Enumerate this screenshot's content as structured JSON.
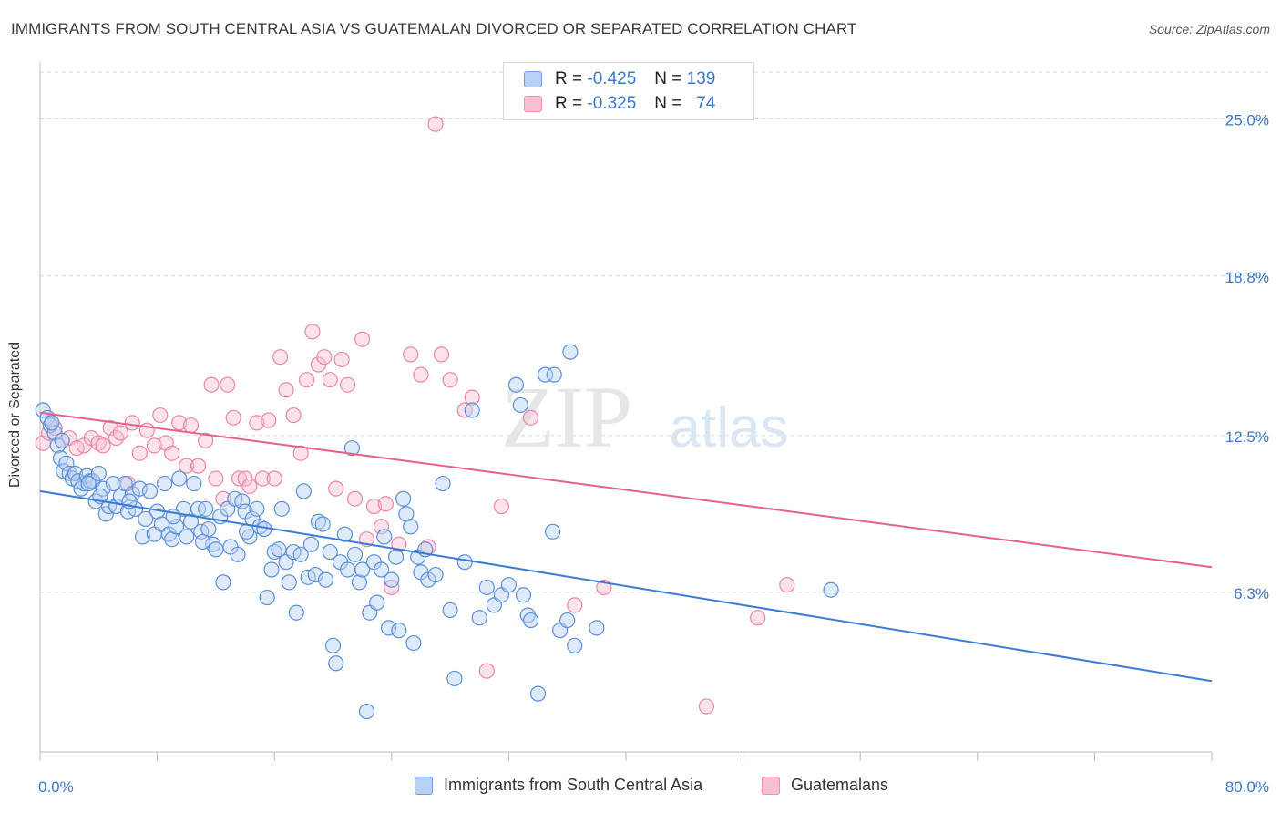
{
  "title": "IMMIGRANTS FROM SOUTH CENTRAL ASIA VS GUATEMALAN DIVORCED OR SEPARATED CORRELATION CHART",
  "source": "Source: ZipAtlas.com",
  "watermark": {
    "zip": "ZIP",
    "atlas": "atlas"
  },
  "legend_top": {
    "rows": [
      {
        "r_label": "R =",
        "r_value": "-0.425",
        "n_label": "N =",
        "n_value": "139"
      },
      {
        "r_label": "R =",
        "r_value": "-0.325",
        "n_label": "N =",
        "n_value": "74"
      }
    ]
  },
  "colors": {
    "blue": "#3a7bd5",
    "blue_fill": "#b8d0f2",
    "pink": "#e8608c",
    "pink_fill": "#f7bfd2",
    "tick_label": "#3b78c9",
    "grid": "#d8d8d8"
  },
  "chart_data": {
    "type": "scatter",
    "title": "IMMIGRANTS FROM SOUTH CENTRAL ASIA VS GUATEMALAN DIVORCED OR SEPARATED CORRELATION CHART",
    "xlabel": "",
    "ylabel": "Divorced or Separated",
    "xlim": [
      0,
      80
    ],
    "ylim": [
      0,
      27
    ],
    "x_tick_labels": [
      "0.0%",
      "80.0%"
    ],
    "y_ticks": [
      6.3,
      12.5,
      18.8,
      25.0
    ],
    "y_tick_labels": [
      "6.3%",
      "12.5%",
      "18.8%",
      "25.0%"
    ],
    "grid": true,
    "legend_position": "bottom",
    "series": [
      {
        "name": "Immigrants from South Central Asia",
        "color": "#3a7bd5",
        "trend": {
          "x": [
            0,
            80
          ],
          "y": [
            10.3,
            2.8
          ]
        },
        "points": [
          [
            0.2,
            13.5
          ],
          [
            0.5,
            13.2
          ],
          [
            0.7,
            12.9
          ],
          [
            1.0,
            12.6
          ],
          [
            1.2,
            12.1
          ],
          [
            1.4,
            11.6
          ],
          [
            1.6,
            11.1
          ],
          [
            1.8,
            11.4
          ],
          [
            2.0,
            11.0
          ],
          [
            2.2,
            10.8
          ],
          [
            2.4,
            11.0
          ],
          [
            2.6,
            10.7
          ],
          [
            2.8,
            10.4
          ],
          [
            3.0,
            10.6
          ],
          [
            3.2,
            10.9
          ],
          [
            3.4,
            10.7
          ],
          [
            3.6,
            10.7
          ],
          [
            3.8,
            9.9
          ],
          [
            4.0,
            11.0
          ],
          [
            4.3,
            10.4
          ],
          [
            4.5,
            9.4
          ],
          [
            4.7,
            9.7
          ],
          [
            5.0,
            10.6
          ],
          [
            5.2,
            9.7
          ],
          [
            5.5,
            10.1
          ],
          [
            5.8,
            10.6
          ],
          [
            6.0,
            9.5
          ],
          [
            6.3,
            10.2
          ],
          [
            6.5,
            9.6
          ],
          [
            6.8,
            10.4
          ],
          [
            7.0,
            8.5
          ],
          [
            7.2,
            9.2
          ],
          [
            7.5,
            10.3
          ],
          [
            7.8,
            8.6
          ],
          [
            8.0,
            9.5
          ],
          [
            8.3,
            9.0
          ],
          [
            8.5,
            10.6
          ],
          [
            8.8,
            8.6
          ],
          [
            9.0,
            8.4
          ],
          [
            9.3,
            8.9
          ],
          [
            9.5,
            10.8
          ],
          [
            9.8,
            9.6
          ],
          [
            10.0,
            8.5
          ],
          [
            10.3,
            9.1
          ],
          [
            10.5,
            10.6
          ],
          [
            10.8,
            9.6
          ],
          [
            11.0,
            8.7
          ],
          [
            11.3,
            9.6
          ],
          [
            11.5,
            8.8
          ],
          [
            11.8,
            8.2
          ],
          [
            12.0,
            8.0
          ],
          [
            12.3,
            9.3
          ],
          [
            12.5,
            6.7
          ],
          [
            12.8,
            9.6
          ],
          [
            13.0,
            8.1
          ],
          [
            13.3,
            10.0
          ],
          [
            13.5,
            7.8
          ],
          [
            13.8,
            9.9
          ],
          [
            14.0,
            9.5
          ],
          [
            14.3,
            8.5
          ],
          [
            14.5,
            9.2
          ],
          [
            14.8,
            9.6
          ],
          [
            15.0,
            8.9
          ],
          [
            15.3,
            8.8
          ],
          [
            15.5,
            6.1
          ],
          [
            15.8,
            7.2
          ],
          [
            16.0,
            7.9
          ],
          [
            16.3,
            8.0
          ],
          [
            16.5,
            9.6
          ],
          [
            16.8,
            7.5
          ],
          [
            17.0,
            6.7
          ],
          [
            17.3,
            7.9
          ],
          [
            17.5,
            5.5
          ],
          [
            17.8,
            7.8
          ],
          [
            18.0,
            10.3
          ],
          [
            18.3,
            6.9
          ],
          [
            18.5,
            8.2
          ],
          [
            18.8,
            7.0
          ],
          [
            19.0,
            9.1
          ],
          [
            19.3,
            9.0
          ],
          [
            19.5,
            6.8
          ],
          [
            19.8,
            7.9
          ],
          [
            20.0,
            4.2
          ],
          [
            20.2,
            3.5
          ],
          [
            20.5,
            7.5
          ],
          [
            20.8,
            8.6
          ],
          [
            21.0,
            7.2
          ],
          [
            21.3,
            12.0
          ],
          [
            21.5,
            7.8
          ],
          [
            21.8,
            6.7
          ],
          [
            22.0,
            7.2
          ],
          [
            22.3,
            1.6
          ],
          [
            22.5,
            5.5
          ],
          [
            22.8,
            7.5
          ],
          [
            23.0,
            5.9
          ],
          [
            23.3,
            7.2
          ],
          [
            23.5,
            8.5
          ],
          [
            23.8,
            4.9
          ],
          [
            24.0,
            6.8
          ],
          [
            24.3,
            7.7
          ],
          [
            24.5,
            4.8
          ],
          [
            24.8,
            10.0
          ],
          [
            25.0,
            9.4
          ],
          [
            25.3,
            8.9
          ],
          [
            25.5,
            4.3
          ],
          [
            25.8,
            7.7
          ],
          [
            26.0,
            7.1
          ],
          [
            26.3,
            8.0
          ],
          [
            26.5,
            6.8
          ],
          [
            27.0,
            7.0
          ],
          [
            27.5,
            10.6
          ],
          [
            28.0,
            5.6
          ],
          [
            28.3,
            2.9
          ],
          [
            29.0,
            7.5
          ],
          [
            29.5,
            13.5
          ],
          [
            30.0,
            5.3
          ],
          [
            30.5,
            6.5
          ],
          [
            31.0,
            5.8
          ],
          [
            31.5,
            6.2
          ],
          [
            32.0,
            6.6
          ],
          [
            32.5,
            14.5
          ],
          [
            32.8,
            13.7
          ],
          [
            33.0,
            6.2
          ],
          [
            33.3,
            5.4
          ],
          [
            33.5,
            5.2
          ],
          [
            34.0,
            2.3
          ],
          [
            34.5,
            14.9
          ],
          [
            35.0,
            8.7
          ],
          [
            35.5,
            4.8
          ],
          [
            36.0,
            5.2
          ],
          [
            36.5,
            4.2
          ],
          [
            38.0,
            4.9
          ],
          [
            54.0,
            6.4
          ],
          [
            0.8,
            13.0
          ],
          [
            1.5,
            12.3
          ],
          [
            3.3,
            10.6
          ],
          [
            4.1,
            10.1
          ],
          [
            6.1,
            9.9
          ],
          [
            9.1,
            9.3
          ],
          [
            11.1,
            8.3
          ],
          [
            14.1,
            8.7
          ],
          [
            35.1,
            14.9
          ],
          [
            36.2,
            15.8
          ]
        ]
      },
      {
        "name": "Guatemalans",
        "color": "#e8608c",
        "trend": {
          "x": [
            0,
            80
          ],
          "y": [
            13.4,
            7.3
          ]
        },
        "points": [
          [
            0.2,
            12.2
          ],
          [
            0.6,
            12.6
          ],
          [
            1.0,
            12.8
          ],
          [
            1.5,
            12.3
          ],
          [
            2.0,
            12.4
          ],
          [
            2.5,
            12.0
          ],
          [
            3.0,
            12.1
          ],
          [
            3.5,
            12.4
          ],
          [
            4.0,
            12.2
          ],
          [
            4.3,
            12.1
          ],
          [
            4.8,
            12.8
          ],
          [
            5.2,
            12.4
          ],
          [
            5.5,
            12.6
          ],
          [
            6.0,
            10.6
          ],
          [
            6.3,
            13.0
          ],
          [
            6.8,
            11.8
          ],
          [
            7.3,
            12.7
          ],
          [
            7.8,
            12.1
          ],
          [
            8.2,
            13.3
          ],
          [
            8.6,
            12.2
          ],
          [
            9.0,
            11.8
          ],
          [
            9.5,
            13.0
          ],
          [
            10.0,
            11.3
          ],
          [
            10.3,
            12.9
          ],
          [
            10.8,
            11.3
          ],
          [
            11.3,
            12.3
          ],
          [
            11.7,
            14.5
          ],
          [
            12.0,
            10.8
          ],
          [
            12.5,
            10.0
          ],
          [
            12.8,
            14.5
          ],
          [
            13.2,
            13.2
          ],
          [
            13.6,
            10.8
          ],
          [
            14.0,
            10.8
          ],
          [
            14.3,
            10.5
          ],
          [
            14.8,
            13.0
          ],
          [
            15.2,
            10.8
          ],
          [
            15.6,
            13.1
          ],
          [
            16.0,
            10.8
          ],
          [
            16.4,
            15.6
          ],
          [
            16.8,
            14.3
          ],
          [
            17.3,
            13.3
          ],
          [
            17.8,
            11.8
          ],
          [
            18.2,
            14.7
          ],
          [
            18.6,
            16.6
          ],
          [
            19.0,
            15.3
          ],
          [
            19.4,
            15.6
          ],
          [
            19.8,
            14.7
          ],
          [
            20.2,
            10.4
          ],
          [
            20.6,
            15.5
          ],
          [
            21.0,
            14.5
          ],
          [
            21.5,
            10.0
          ],
          [
            22.0,
            16.3
          ],
          [
            22.3,
            8.4
          ],
          [
            22.8,
            9.7
          ],
          [
            23.3,
            8.9
          ],
          [
            23.6,
            9.8
          ],
          [
            24.0,
            6.5
          ],
          [
            24.5,
            8.2
          ],
          [
            25.3,
            15.7
          ],
          [
            26.0,
            14.9
          ],
          [
            26.5,
            8.1
          ],
          [
            27.0,
            24.8
          ],
          [
            27.4,
            15.7
          ],
          [
            28.0,
            14.7
          ],
          [
            29.0,
            13.5
          ],
          [
            29.5,
            14.0
          ],
          [
            30.5,
            3.2
          ],
          [
            31.5,
            9.7
          ],
          [
            33.5,
            13.2
          ],
          [
            36.5,
            5.8
          ],
          [
            38.5,
            6.5
          ],
          [
            45.5,
            1.8
          ],
          [
            49.0,
            5.3
          ],
          [
            51.0,
            6.6
          ]
        ]
      }
    ]
  },
  "legend_bottom": {
    "items": [
      "Immigrants from South Central Asia",
      "Guatemalans"
    ]
  }
}
